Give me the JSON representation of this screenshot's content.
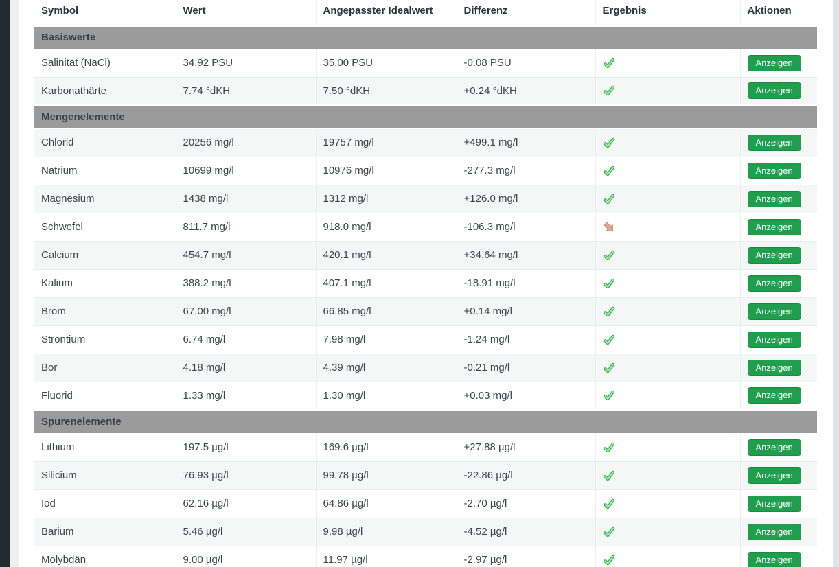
{
  "table": {
    "columns": [
      "Symbol",
      "Wert",
      "Angepasster Idealwert",
      "Differenz",
      "Ergebnis",
      "Aktionen"
    ],
    "action_label": "Anzeigen",
    "sections": [
      {
        "title": "Basiswerte",
        "rows": [
          {
            "symbol": "Salinität (NaCl)",
            "wert": "34.92 PSU",
            "ideal": "35.00 PSU",
            "differenz": "-0.08 PSU",
            "ergebnis": "ok"
          },
          {
            "symbol": "Karbonathärte",
            "wert": "7.74 °dKH",
            "ideal": "7.50 °dKH",
            "differenz": "+0.24 °dKH",
            "ergebnis": "ok"
          }
        ]
      },
      {
        "title": "Mengenelemente",
        "rows": [
          {
            "symbol": "Chlorid",
            "wert": "20256 mg/l",
            "ideal": "19757 mg/l",
            "differenz": "+499.1 mg/l",
            "ergebnis": "ok"
          },
          {
            "symbol": "Natrium",
            "wert": "10699 mg/l",
            "ideal": "10976 mg/l",
            "differenz": "-277.3 mg/l",
            "ergebnis": "ok"
          },
          {
            "symbol": "Magnesium",
            "wert": "1438 mg/l",
            "ideal": "1312 mg/l",
            "differenz": "+126.0 mg/l",
            "ergebnis": "ok"
          },
          {
            "symbol": "Schwefel",
            "wert": "811.7 mg/l",
            "ideal": "918.0 mg/l",
            "differenz": "-106.3 mg/l",
            "ergebnis": "below"
          },
          {
            "symbol": "Calcium",
            "wert": "454.7 mg/l",
            "ideal": "420.1 mg/l",
            "differenz": "+34.64 mg/l",
            "ergebnis": "ok"
          },
          {
            "symbol": "Kalium",
            "wert": "388.2 mg/l",
            "ideal": "407.1 mg/l",
            "differenz": "-18.91 mg/l",
            "ergebnis": "ok"
          },
          {
            "symbol": "Brom",
            "wert": "67.00 mg/l",
            "ideal": "66.85 mg/l",
            "differenz": "+0.14 mg/l",
            "ergebnis": "ok"
          },
          {
            "symbol": "Strontium",
            "wert": "6.74 mg/l",
            "ideal": "7.98 mg/l",
            "differenz": "-1.24 mg/l",
            "ergebnis": "ok"
          },
          {
            "symbol": "Bor",
            "wert": "4.18 mg/l",
            "ideal": "4.39 mg/l",
            "differenz": "-0.21 mg/l",
            "ergebnis": "ok"
          },
          {
            "symbol": "Fluorid",
            "wert": "1.33 mg/l",
            "ideal": "1.30 mg/l",
            "differenz": "+0.03 mg/l",
            "ergebnis": "ok"
          }
        ]
      },
      {
        "title": "Spurenelemente",
        "rows": [
          {
            "symbol": "Lithium",
            "wert": "197.5 µg/l",
            "ideal": "169.6 µg/l",
            "differenz": "+27.88 µg/l",
            "ergebnis": "ok"
          },
          {
            "symbol": "Silicium",
            "wert": "76.93 µg/l",
            "ideal": "99.78 µg/l",
            "differenz": "-22.86 µg/l",
            "ergebnis": "ok"
          },
          {
            "symbol": "Iod",
            "wert": "62.16 µg/l",
            "ideal": "64.86 µg/l",
            "differenz": "-2.70 µg/l",
            "ergebnis": "ok"
          },
          {
            "symbol": "Barium",
            "wert": "5.46 µg/l",
            "ideal": "9.98 µg/l",
            "differenz": "-4.52 µg/l",
            "ergebnis": "ok"
          },
          {
            "symbol": "Molybdän",
            "wert": "9.00 µg/l",
            "ideal": "11.97 µg/l",
            "differenz": "-2.97 µg/l",
            "ergebnis": "ok"
          }
        ]
      }
    ]
  },
  "icons": {
    "ok": "check-icon",
    "below": "arrow-down-right-icon"
  },
  "colors": {
    "button_green": "#1f9e4e",
    "check_green": "#33b249",
    "check_green_light": "#a9f0b4",
    "warn_salmon": "#e2a68c",
    "warn_salmon_dark": "#cf8f72",
    "section_band": "#9b9b9b",
    "stripe": "#f5f6f6",
    "page_dark": "#242a31"
  }
}
